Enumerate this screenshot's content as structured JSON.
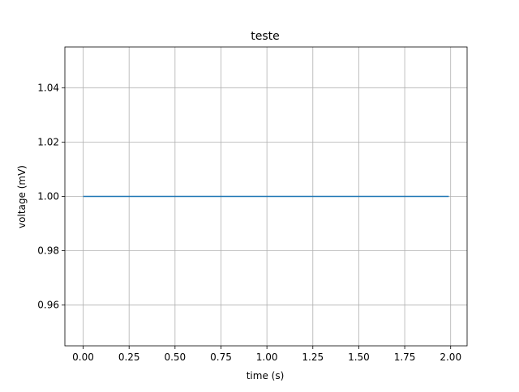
{
  "chart_data": {
    "type": "line",
    "title": "teste",
    "xlabel": "time (s)",
    "ylabel": "voltage (mV)",
    "xlim": [
      -0.0995,
      2.0895
    ],
    "ylim": [
      0.945,
      1.055
    ],
    "x_ticks": [
      0.0,
      0.25,
      0.5,
      0.75,
      1.0,
      1.25,
      1.5,
      1.75,
      2.0
    ],
    "x_tick_labels": [
      "0.00",
      "0.25",
      "0.50",
      "0.75",
      "1.00",
      "1.25",
      "1.50",
      "1.75",
      "2.00"
    ],
    "y_ticks": [
      0.96,
      0.98,
      1.0,
      1.02,
      1.04
    ],
    "y_tick_labels": [
      "0.96",
      "0.98",
      "1.00",
      "1.02",
      "1.04"
    ],
    "grid": true,
    "series": [
      {
        "x": [
          0.0,
          1.99
        ],
        "y": [
          1.0,
          1.0
        ],
        "color": "#1f77b4"
      }
    ]
  }
}
